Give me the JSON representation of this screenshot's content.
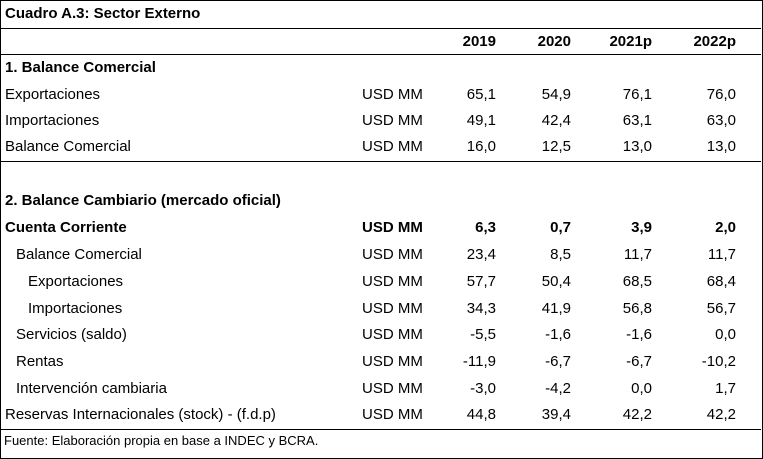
{
  "title": "Cuadro A.3: Sector Externo",
  "years": [
    "2019",
    "2020",
    "2021p",
    "2022p"
  ],
  "section1": {
    "heading": "1. Balance Comercial",
    "rows": [
      {
        "label": "Exportaciones",
        "unit": "USD MM",
        "values": [
          "65,1",
          "54,9",
          "76,1",
          "76,0"
        ]
      },
      {
        "label": "Importaciones",
        "unit": "USD MM",
        "values": [
          "49,1",
          "42,4",
          "63,1",
          "63,0"
        ]
      },
      {
        "label": "Balance Comercial",
        "unit": "USD MM",
        "values": [
          "16,0",
          "12,5",
          "13,0",
          "13,0"
        ]
      }
    ]
  },
  "section2": {
    "heading": "2. Balance Cambiario (mercado oficial)",
    "rows": [
      {
        "label": "Cuenta Corriente",
        "unit": "USD MM",
        "values": [
          "6,3",
          "0,7",
          "3,9",
          "2,0"
        ]
      },
      {
        "label": "Balance Comercial",
        "unit": "USD MM",
        "values": [
          "23,4",
          "8,5",
          "11,7",
          "11,7"
        ]
      },
      {
        "label": "Exportaciones",
        "unit": "USD MM",
        "values": [
          "57,7",
          "50,4",
          "68,5",
          "68,4"
        ]
      },
      {
        "label": "Importaciones",
        "unit": "USD MM",
        "values": [
          "34,3",
          "41,9",
          "56,8",
          "56,7"
        ]
      },
      {
        "label": "Servicios (saldo)",
        "unit": "USD MM",
        "values": [
          "-5,5",
          "-1,6",
          "-1,6",
          "0,0"
        ]
      },
      {
        "label": "Rentas",
        "unit": "USD MM",
        "values": [
          "-11,9",
          "-6,7",
          "-6,7",
          "-10,2"
        ]
      },
      {
        "label": "Intervención cambiaria",
        "unit": "USD MM",
        "values": [
          "-3,0",
          "-4,2",
          "0,0",
          "1,7"
        ]
      },
      {
        "label": "Reservas Internacionales (stock) - (f.d.p)",
        "unit": "USD MM",
        "values": [
          "44,8",
          "39,4",
          "42,2",
          "42,2"
        ]
      }
    ]
  },
  "footer": "Fuente: Elaboración propia en base a INDEC y BCRA."
}
